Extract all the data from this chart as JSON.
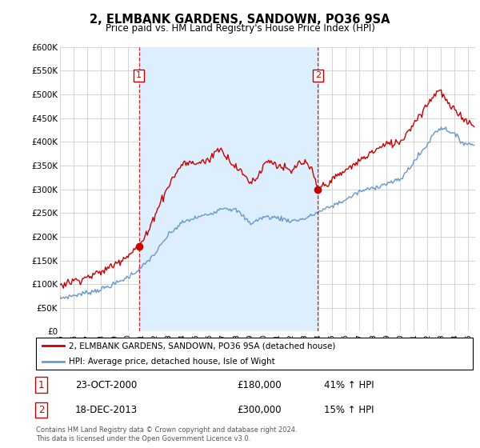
{
  "title": "2, ELMBANK GARDENS, SANDOWN, PO36 9SA",
  "subtitle": "Price paid vs. HM Land Registry's House Price Index (HPI)",
  "footer": "Contains HM Land Registry data © Crown copyright and database right 2024.\nThis data is licensed under the Open Government Licence v3.0.",
  "legend_entry1": "2, ELMBANK GARDENS, SANDOWN, PO36 9SA (detached house)",
  "legend_entry2": "HPI: Average price, detached house, Isle of Wight",
  "annotation1_label": "1",
  "annotation1_date": "23-OCT-2000",
  "annotation1_price": "£180,000",
  "annotation1_hpi": "41% ↑ HPI",
  "annotation2_label": "2",
  "annotation2_date": "18-DEC-2013",
  "annotation2_price": "£300,000",
  "annotation2_hpi": "15% ↑ HPI",
  "red_color": "#cc0000",
  "blue_color": "#6699cc",
  "shade_color": "#ddeeff",
  "background_color": "#ffffff",
  "grid_color": "#cccccc",
  "ylim": [
    0,
    600000
  ],
  "yticks": [
    0,
    50000,
    100000,
    150000,
    200000,
    250000,
    300000,
    350000,
    400000,
    450000,
    500000,
    550000,
    600000
  ],
  "sale1_x": 2000.8,
  "sale1_y": 180000,
  "sale2_x": 2013.95,
  "sale2_y": 300000,
  "vline1_x": 2000.8,
  "vline2_x": 2013.95,
  "xmin": 1995,
  "xmax": 2025.5
}
